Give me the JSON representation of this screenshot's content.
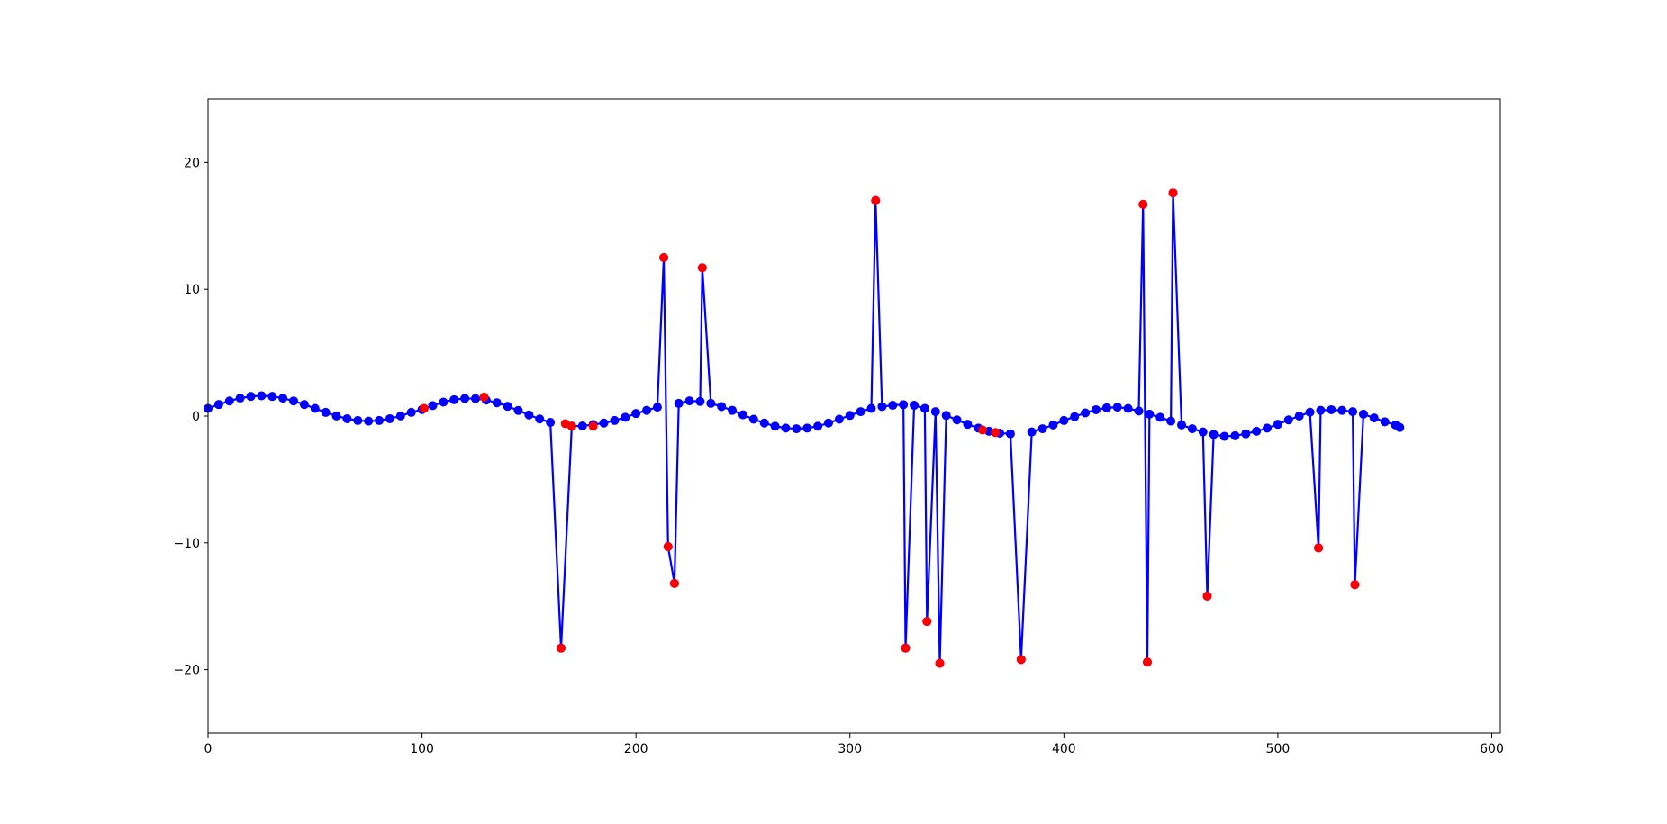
{
  "chart_data": {
    "type": "line",
    "xlim": [
      0,
      604
    ],
    "ylim": [
      -25,
      25
    ],
    "xticks": [
      0,
      100,
      200,
      300,
      400,
      500,
      600
    ],
    "yticks": [
      {
        "value": -20,
        "label": "−20"
      },
      {
        "value": -10,
        "label": "−10"
      },
      0,
      10,
      20
    ],
    "grid": false,
    "series": [
      {
        "color": "#0000ff",
        "linestyle": "solid",
        "marker": true,
        "x": [
          0,
          5,
          10,
          15,
          20,
          25,
          30,
          35,
          40,
          45,
          50,
          55,
          60,
          65,
          70,
          75,
          80,
          85,
          90,
          95,
          100,
          105,
          110,
          115,
          120,
          125,
          130,
          135,
          140,
          145,
          150,
          155,
          160,
          165,
          170,
          175,
          180,
          185,
          190,
          195,
          200,
          205,
          210,
          213,
          215,
          218,
          220,
          225,
          230,
          231,
          235,
          240,
          245,
          250,
          255,
          260,
          265,
          270,
          275,
          280,
          285,
          290,
          295,
          300,
          305,
          310,
          312,
          315,
          320,
          325,
          326,
          330,
          335,
          336,
          340,
          342,
          345,
          350,
          355,
          360,
          365,
          370,
          375,
          380,
          385,
          390,
          395,
          400,
          405,
          410,
          415,
          420,
          425,
          430,
          435,
          437,
          439,
          440,
          445,
          450,
          451,
          455,
          460,
          465,
          467,
          470,
          475,
          480,
          485,
          490,
          495,
          500,
          505,
          510,
          515,
          519,
          520,
          525,
          530,
          535,
          536,
          540,
          545,
          550,
          555,
          557
        ],
        "values": [
          0.6,
          0.91,
          1.19,
          1.41,
          1.55,
          1.6,
          1.55,
          1.41,
          1.19,
          0.91,
          0.6,
          0.29,
          0.01,
          -0.21,
          -0.35,
          -0.4,
          -0.35,
          -0.21,
          0.01,
          0.29,
          0.51,
          0.83,
          1.1,
          1.29,
          1.39,
          1.38,
          1.26,
          1.05,
          0.77,
          0.44,
          0.09,
          -0.23,
          -0.5,
          -18.3,
          -0.79,
          -0.78,
          -0.67,
          -0.55,
          -0.35,
          -0.1,
          0.2,
          0.45,
          0.7,
          12.5,
          -10.3,
          -13.2,
          1.0,
          1.2,
          1.15,
          11.7,
          1.0,
          0.75,
          0.45,
          0.1,
          -0.25,
          -0.55,
          -0.8,
          -0.95,
          -1.0,
          -0.95,
          -0.8,
          -0.55,
          -0.25,
          0.05,
          0.35,
          0.6,
          17.0,
          0.75,
          0.85,
          0.9,
          -18.3,
          0.85,
          0.6,
          -16.2,
          0.35,
          -19.5,
          0.05,
          -0.3,
          -0.65,
          -0.95,
          -1.2,
          -1.35,
          -1.4,
          -19.2,
          -1.25,
          -1.0,
          -0.7,
          -0.35,
          -0.05,
          0.25,
          0.5,
          0.65,
          0.7,
          0.6,
          0.4,
          16.7,
          -19.4,
          0.15,
          -0.1,
          -0.4,
          17.6,
          -0.7,
          -1.0,
          -1.25,
          -14.2,
          -1.45,
          -1.6,
          -1.55,
          -1.4,
          -1.2,
          -0.95,
          -0.65,
          -0.3,
          0.0,
          0.3,
          -10.4,
          0.45,
          0.5,
          0.45,
          0.35,
          -13.3,
          0.15,
          -0.15,
          -0.45,
          -0.7,
          -0.9
        ]
      },
      {
        "color": "#ff0000",
        "linestyle": "none",
        "marker": true,
        "x": [
          101,
          129,
          165,
          167,
          170,
          180,
          213,
          215,
          218,
          231,
          312,
          326,
          336,
          342,
          362,
          368,
          380,
          437,
          439,
          451,
          467,
          519,
          536
        ],
        "values": [
          0.6,
          1.5,
          -18.3,
          -0.6,
          -0.8,
          -0.8,
          12.5,
          -10.3,
          -13.2,
          11.7,
          17.0,
          -18.3,
          -16.2,
          -19.5,
          -1.1,
          -1.3,
          -19.2,
          16.7,
          -19.4,
          17.6,
          -14.2,
          -10.4,
          -13.3
        ]
      }
    ]
  }
}
